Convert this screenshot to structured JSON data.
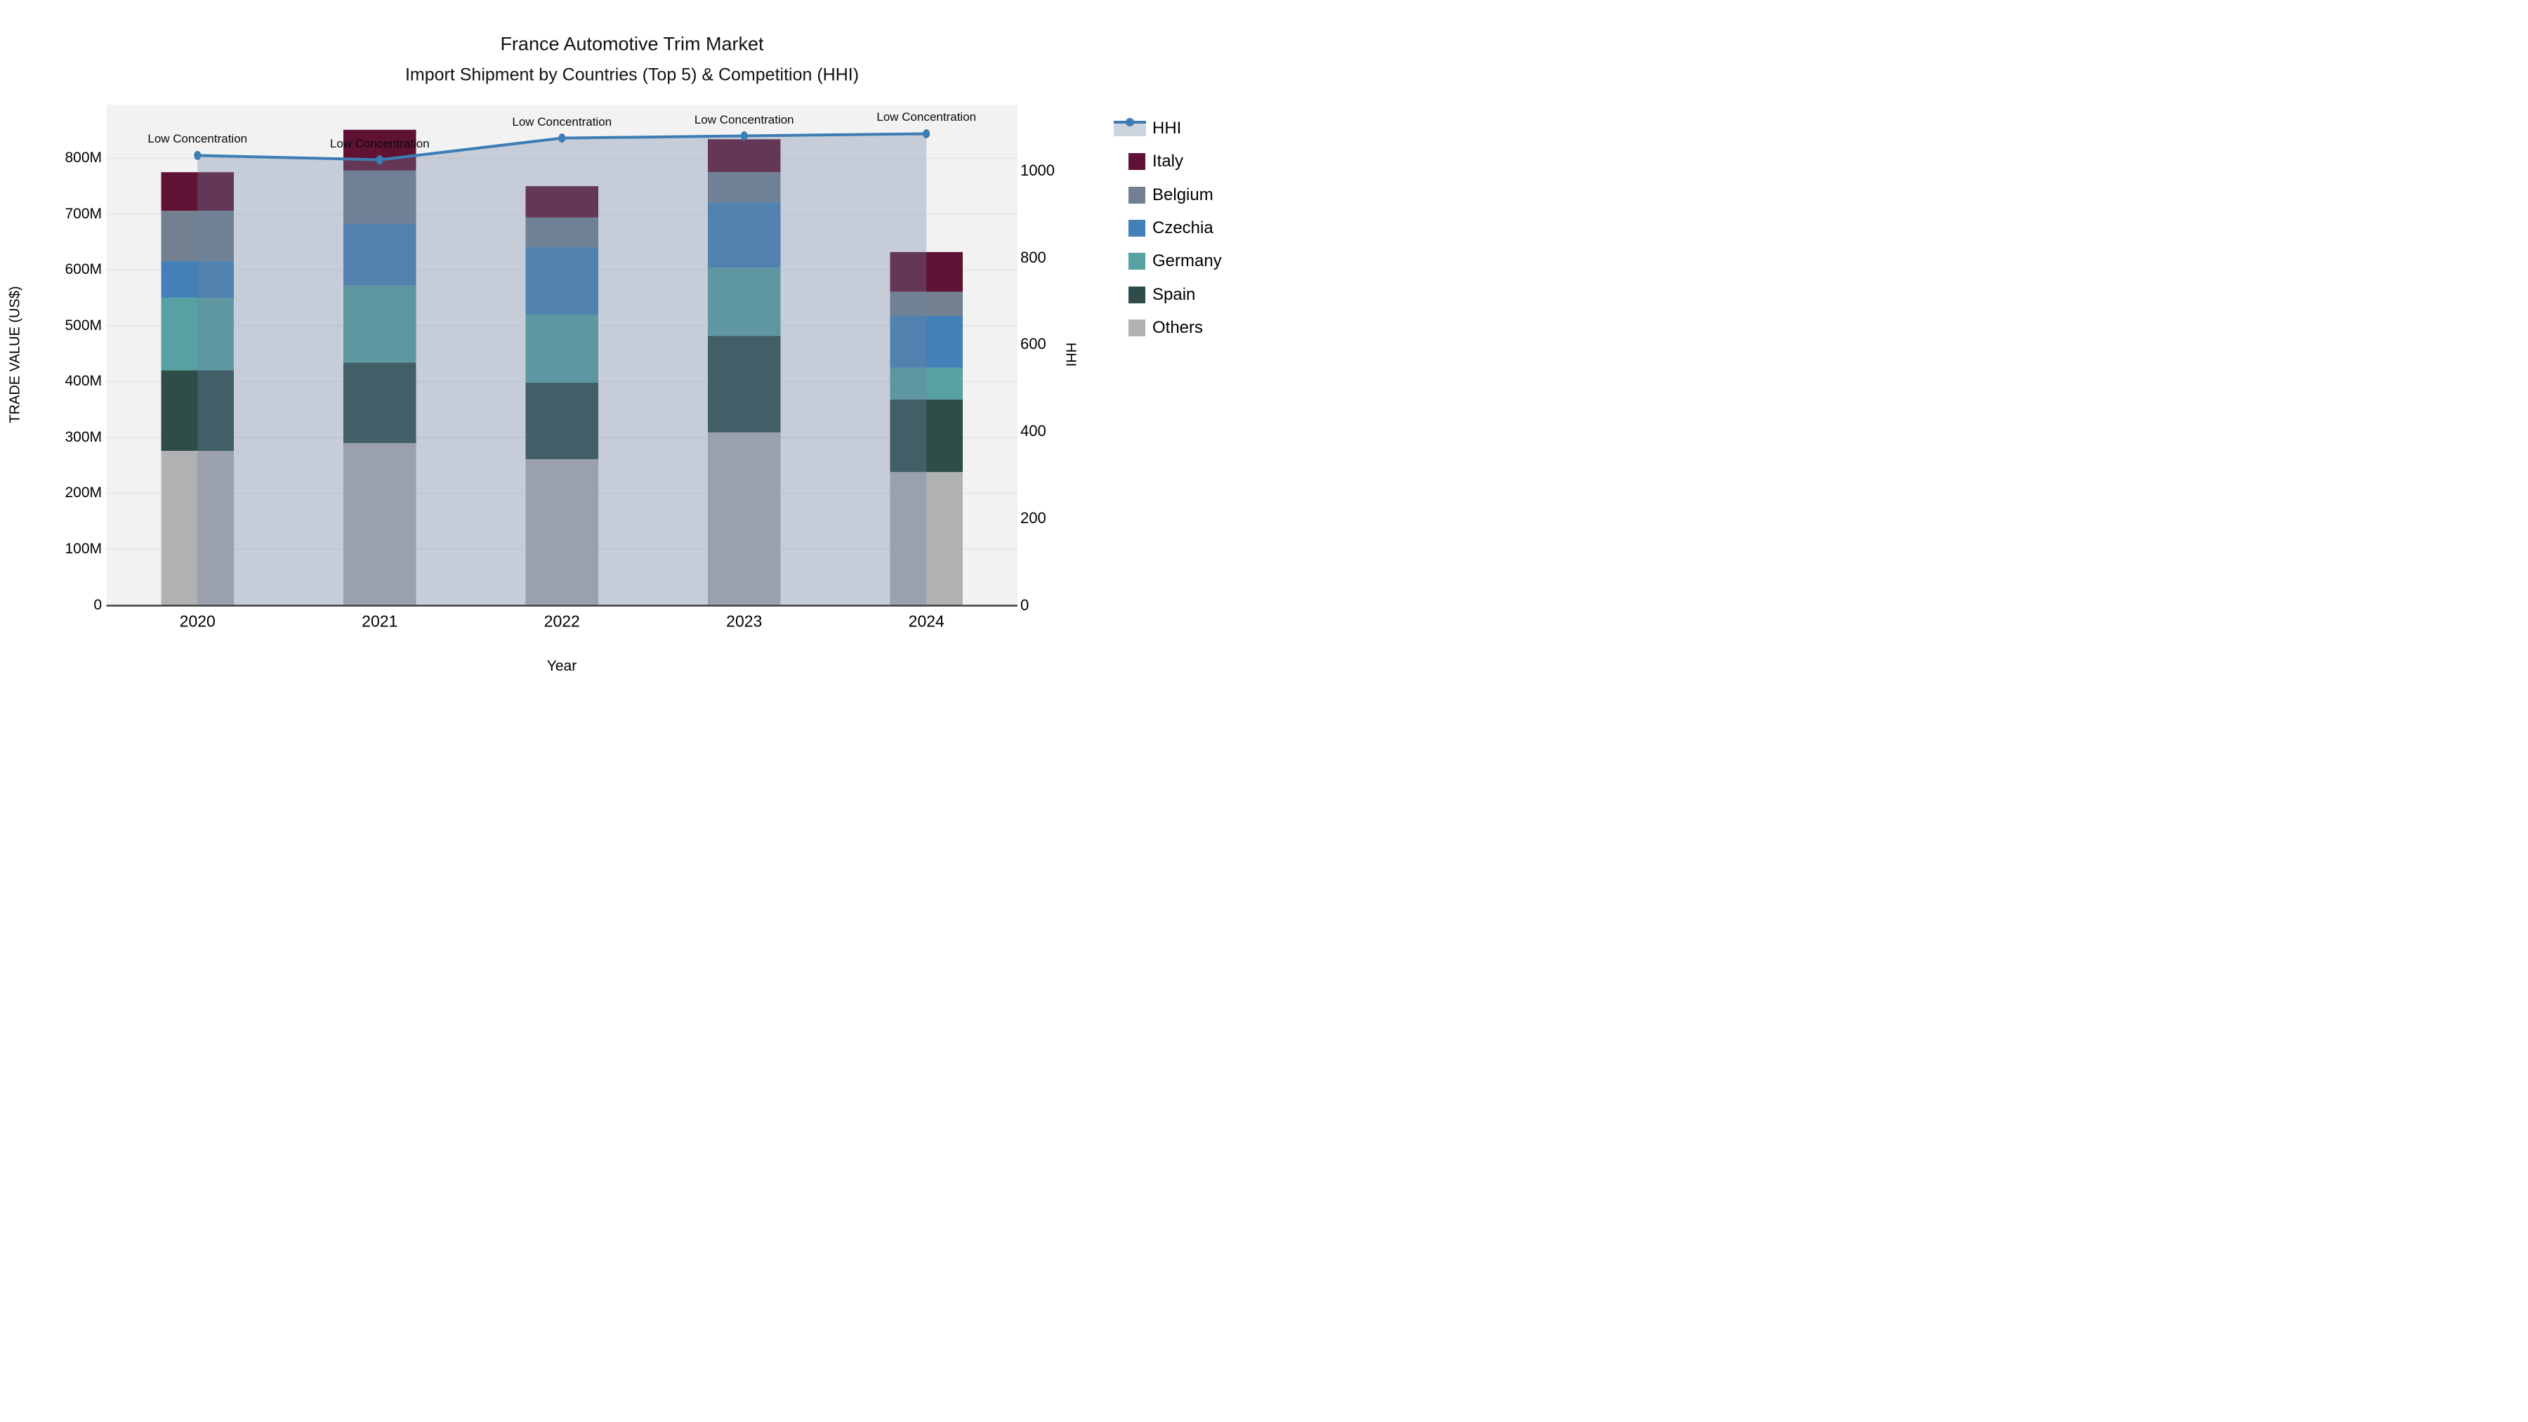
{
  "figure": {
    "title": "France Automotive Trim Market",
    "subtitle": "Import Shipment by Countries (Top 5) & Competition (HHI)"
  },
  "axes": {
    "x": {
      "label": "Year",
      "ticks": [
        "2020",
        "2021",
        "2022",
        "2023",
        "2024"
      ]
    },
    "y_left": {
      "label": "TRADE VALUE (US$)",
      "ticks": [
        "0",
        "100M",
        "200M",
        "300M",
        "400M",
        "500M",
        "600M",
        "700M",
        "800M"
      ]
    },
    "y_right": {
      "label": "HHI",
      "ticks": [
        "0",
        "200",
        "400",
        "600",
        "800",
        "1000"
      ]
    }
  },
  "legend": {
    "items": [
      {
        "label": "HHI",
        "type": "line",
        "color": "#3d7db5"
      },
      {
        "label": "Italy",
        "type": "swatch",
        "color": "#601234"
      },
      {
        "label": "Belgium",
        "type": "swatch",
        "color": "#72808f"
      },
      {
        "label": "Czechia",
        "type": "swatch",
        "color": "#4280b7"
      },
      {
        "label": "Germany",
        "type": "swatch",
        "color": "#57a1a2"
      },
      {
        "label": "Spain",
        "type": "swatch",
        "color": "#2e4d49"
      },
      {
        "label": "Others",
        "type": "swatch",
        "color": "#b0b1b2"
      }
    ]
  },
  "chart_data": {
    "type": "bar",
    "subtype": "stacked-bars-with-line",
    "categories": [
      "2020",
      "2021",
      "2022",
      "2023",
      "2024"
    ],
    "bar_value_unit": "M US$",
    "series": [
      {
        "name": "Others",
        "color": "#b0b1b2",
        "values": [
          276,
          290,
          261,
          309,
          238
        ]
      },
      {
        "name": "Spain",
        "color": "#2e4d49",
        "values": [
          144,
          144,
          137,
          173,
          130
        ]
      },
      {
        "name": "Germany",
        "color": "#57a1a2",
        "values": [
          130,
          138,
          122,
          122,
          57
        ]
      },
      {
        "name": "Czechia",
        "color": "#4280b7",
        "values": [
          66,
          111,
          121,
          117,
          93
        ]
      },
      {
        "name": "Belgium",
        "color": "#72808f",
        "values": [
          90,
          95,
          53,
          54,
          43
        ]
      },
      {
        "name": "Italy",
        "color": "#601234",
        "values": [
          69,
          73,
          56,
          59,
          71
        ]
      }
    ],
    "bar_totals": [
      775,
      851,
      750,
      834,
      632
    ],
    "line_series": {
      "name": "HHI",
      "axis": "right",
      "color": "#3d7db5",
      "area_fill_color": "rgba(110,130,160,0.33)",
      "values": [
        1035,
        1025,
        1075,
        1080,
        1085
      ]
    },
    "annotations": [
      {
        "text": "Low Concentration",
        "category": "2020"
      },
      {
        "text": "Low Concentration",
        "category": "2021"
      },
      {
        "text": "Low Concentration",
        "category": "2022"
      },
      {
        "text": "Low Concentration",
        "category": "2023"
      },
      {
        "text": "Low Concentration",
        "category": "2024"
      }
    ],
    "title": "France Automotive Trim Market\nImport Shipment by Countries (Top 5) & Competition (HHI)",
    "xlabel": "Year",
    "ylabel_left": "TRADE VALUE (US$)",
    "ylabel_right": "HHI",
    "ylim_left": [
      0,
      896
    ],
    "ylim_right": [
      0,
      1152
    ],
    "grid": "horizontal",
    "legend_position": "right",
    "plot_bg_color": "#f2f2f3",
    "grid_color": "#e4e5e8"
  }
}
